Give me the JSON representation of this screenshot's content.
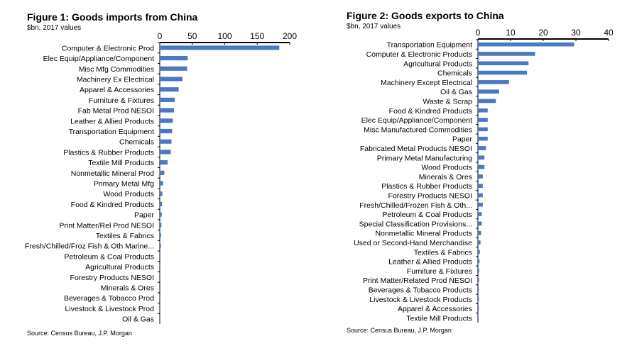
{
  "chart_data": [
    {
      "type": "bar",
      "orientation": "horizontal",
      "title": "Figure 1: Goods imports from China",
      "subtitle": "$bn, 2017 values",
      "source": "Source: Census Bureau, J.P. Morgan",
      "xlim": [
        0,
        200
      ],
      "xticks": [
        0,
        50,
        100,
        150,
        200
      ],
      "color": "#4a78c2",
      "categories": [
        "Computer & Electronic Prod",
        "Elec Equip/Appliance/Component",
        "Misc Mfg Commodities",
        "Machinery Ex Electrical",
        "Apparel & Accessories",
        "Furniture & Fixtures",
        "Fab Metal Prod NESOI",
        "Leather & Allied Products",
        "Transportation Equipment",
        "Chemicals",
        "Plastics & Rubber Products",
        "Textile Mill Products",
        "Nonmetallic Mineral Prod",
        "Primary Metal Mfg",
        "Wood Products",
        "Food & Kindred Products",
        "Paper",
        "Print Matter/Rel Prod NESOI",
        "Textiles & Fabrics",
        "Fresh/Chilled/Froz Fish & Oth Marine...",
        "Petroleum & Coal Products",
        "Agricultural Products",
        "Forestry Products NESOI",
        "Minerals & Ores",
        "Beverages & Tobacco Prod",
        "Livestock & Livestock Prod",
        "Oil & Gas"
      ],
      "values": [
        184,
        43,
        42,
        35,
        29,
        23,
        22,
        20,
        19,
        18,
        17,
        12,
        7,
        5,
        4,
        3.5,
        3,
        2.5,
        2,
        1.8,
        0.6,
        0.5,
        0.4,
        0.3,
        0.3,
        0.2,
        0.1
      ]
    },
    {
      "type": "bar",
      "orientation": "horizontal",
      "title": "Figure 2: Goods exports to China",
      "subtitle": "$bn, 2017 values",
      "source": "Source: Census Bureau, J.P. Morgan",
      "xlim": [
        0,
        40
      ],
      "xticks": [
        0,
        10,
        20,
        30,
        40
      ],
      "color": "#4a78c2",
      "categories": [
        "Transportation Equipment",
        "Computer & Electronic Products",
        "Agricultural Products",
        "Chemicals",
        "Machinery Except Electrical",
        "Oil & Gas",
        "Waste & Scrap",
        "Food & Kindred Products",
        "Elec Equip/Appliance/Component",
        "Misc Manufactured Commodities",
        "Paper",
        "Fabricated Metal Products NESOI",
        "Primary Metal Manufacturing",
        "Wood Products",
        "Minerals & Ores",
        "Plastics & Rubber Products",
        "Forestry Products NESOI",
        "Fresh/Chilled/Frozen Fish & Oth...",
        "Petroleum & Coal Products",
        "Special Classification Provisions...",
        "Nonmetallic Mineral Products",
        "Used or Second-Hand Merchandise",
        "Textiles & Fabrics",
        "Leather & Allied Products",
        "Furniture & Fixtures",
        "Print Matter/Related Prod NESOI",
        "Beverages & Tobacco Products",
        "Livestock & Livestock Products",
        "Apparel & Accessories",
        "Textile Mill Products"
      ],
      "values": [
        29.5,
        17.5,
        15.5,
        15,
        9.5,
        6.5,
        5.5,
        3,
        3,
        3,
        3,
        2.5,
        2,
        2,
        1.5,
        1.5,
        1.5,
        1.5,
        1.2,
        1.2,
        1,
        0.8,
        0.6,
        0.5,
        0.4,
        0.4,
        0.3,
        0.3,
        0.3,
        0.2
      ]
    }
  ]
}
